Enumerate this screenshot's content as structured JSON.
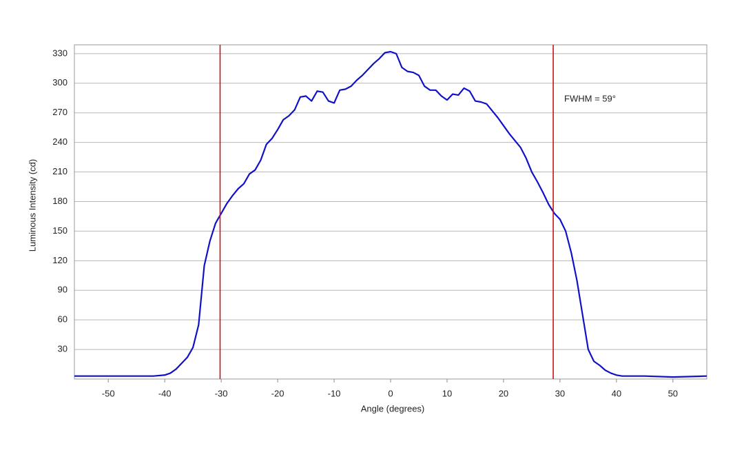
{
  "chart_data": {
    "type": "line",
    "x_label": "Angle (degrees)",
    "y_label": "Luminous Intensity (cd)",
    "xlim": [
      -56,
      56
    ],
    "ylim": [
      0,
      339
    ],
    "xticks": [
      -50,
      -40,
      -30,
      -20,
      -10,
      0,
      10,
      20,
      30,
      40,
      50
    ],
    "yticks": [
      30,
      60,
      90,
      120,
      150,
      180,
      210,
      240,
      270,
      300,
      330
    ],
    "grid": true,
    "series": [
      {
        "color": "#1010c8",
        "x": [
          -56,
          -50,
          -45,
          -42,
          -40,
          -39,
          -38,
          -37,
          -36,
          -35,
          -34,
          -33,
          -32,
          -31,
          -30,
          -29,
          -28,
          -27,
          -26,
          -25,
          -24,
          -23,
          -22,
          -21,
          -20,
          -19,
          -18,
          -17,
          -16,
          -15,
          -14,
          -13,
          -12,
          -11,
          -10,
          -9,
          -8,
          -7,
          -6,
          -5,
          -4,
          -3,
          -2,
          -1,
          0,
          1,
          2,
          3,
          4,
          5,
          6,
          7,
          8,
          9,
          10,
          11,
          12,
          13,
          14,
          15,
          16,
          17,
          18,
          19,
          20,
          21,
          22,
          23,
          24,
          25,
          26,
          27,
          28,
          29,
          30,
          31,
          32,
          33,
          34,
          35,
          36,
          37,
          38,
          39,
          40,
          41,
          42,
          45,
          50,
          56
        ],
        "values": [
          3,
          3,
          3,
          3,
          4,
          6,
          10,
          16,
          22,
          32,
          55,
          115,
          140,
          158,
          168,
          178,
          186,
          193,
          198,
          208,
          212,
          222,
          238,
          244,
          253,
          263,
          267,
          273,
          286,
          287,
          282,
          292,
          291,
          282,
          280,
          293,
          294,
          297,
          303,
          308,
          314,
          320,
          325,
          331,
          332,
          330,
          316,
          312,
          311,
          308,
          297,
          293,
          293,
          287,
          283,
          289,
          288,
          295,
          292,
          282,
          281,
          279,
          272,
          265,
          257,
          249,
          242,
          235,
          224,
          210,
          200,
          189,
          177,
          168,
          162,
          150,
          128,
          100,
          65,
          30,
          18,
          14,
          9,
          6,
          4,
          3,
          3,
          3,
          2,
          3
        ]
      }
    ],
    "vlines": {
      "color": "#d01010",
      "x": [
        -30.2,
        28.8
      ]
    },
    "annotations": [
      "FWHM = 59°"
    ]
  }
}
